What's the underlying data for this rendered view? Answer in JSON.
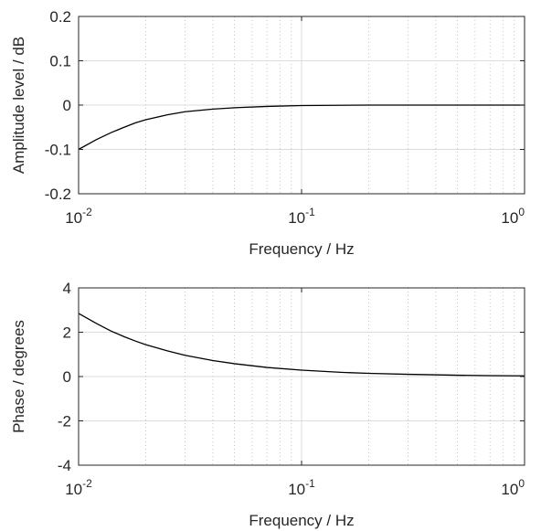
{
  "chart_data": [
    {
      "type": "line",
      "xlabel": "Frequency / Hz",
      "ylabel": "Amplitude level / dB",
      "x_scale": "log",
      "xlim": [
        0.01,
        1
      ],
      "ylim": [
        -0.2,
        0.2
      ],
      "x_ticks": [
        {
          "base": "10",
          "exp": "-2"
        },
        {
          "base": "10",
          "exp": "-1"
        },
        {
          "base": "10",
          "exp": "0"
        }
      ],
      "y_ticks": [
        "0.2",
        "0.1",
        "0",
        "-0.1",
        "-0.2"
      ],
      "y_tick_values": [
        0.2,
        0.1,
        0,
        -0.1,
        -0.2
      ],
      "grid": {
        "major": true,
        "minor": true
      },
      "series": [
        {
          "color": "#000000",
          "x": [
            0.01,
            0.012,
            0.014,
            0.016,
            0.018,
            0.02,
            0.025,
            0.03,
            0.04,
            0.05,
            0.07,
            0.1,
            0.2,
            0.5,
            1
          ],
          "y": [
            -0.1,
            -0.078,
            -0.062,
            -0.05,
            -0.04,
            -0.033,
            -0.022,
            -0.015,
            -0.009,
            -0.006,
            -0.003,
            -0.001,
            0,
            0,
            0
          ]
        }
      ]
    },
    {
      "type": "line",
      "xlabel": "Frequency / Hz",
      "ylabel": "Phase / degrees",
      "x_scale": "log",
      "xlim": [
        0.01,
        1
      ],
      "ylim": [
        -4,
        4
      ],
      "x_ticks": [
        {
          "base": "10",
          "exp": "-2"
        },
        {
          "base": "10",
          "exp": "-1"
        },
        {
          "base": "10",
          "exp": "0"
        }
      ],
      "y_ticks": [
        "4",
        "2",
        "0",
        "-2",
        "-4"
      ],
      "y_tick_values": [
        4,
        2,
        0,
        -2,
        -4
      ],
      "grid": {
        "major": true,
        "minor": true
      },
      "series": [
        {
          "color": "#000000",
          "x": [
            0.01,
            0.012,
            0.014,
            0.016,
            0.018,
            0.02,
            0.025,
            0.03,
            0.04,
            0.05,
            0.07,
            0.1,
            0.15,
            0.2,
            0.3,
            0.5,
            0.7,
            1
          ],
          "y": [
            2.85,
            2.4,
            2.05,
            1.8,
            1.6,
            1.44,
            1.16,
            0.96,
            0.72,
            0.58,
            0.41,
            0.29,
            0.19,
            0.145,
            0.1,
            0.06,
            0.04,
            0.03
          ]
        }
      ]
    }
  ]
}
